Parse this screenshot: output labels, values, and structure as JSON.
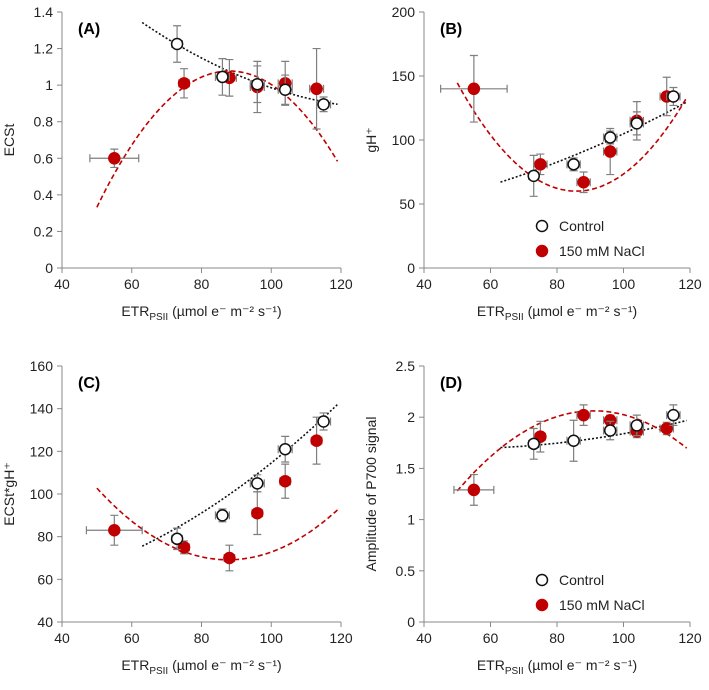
{
  "colors": {
    "control": "#111111",
    "nacl": "#c00000",
    "nacl_fill": "#c00000",
    "control_fill": "#ffffff",
    "error_bar": "#7f7f7f",
    "axis": "#888888",
    "text": "#222222"
  },
  "chart_data": [
    {
      "type": "scatter",
      "panel_label": "(A)",
      "xlabel": {
        "main": "ETR",
        "sub": "PSII",
        "units": " (µmol e⁻ m⁻² s⁻¹)"
      },
      "ylabel": "ECSt",
      "xlim": [
        40,
        120
      ],
      "xticks": [
        "40",
        "60",
        "80",
        "100",
        "120"
      ],
      "ylim": [
        0,
        1.4
      ],
      "yticks": [
        "0",
        "0.2",
        "0.4",
        "0.6",
        "0.8",
        "1",
        "1.2",
        "1.4"
      ],
      "legend": null,
      "series": [
        {
          "name": "Control",
          "marker": "open-circle",
          "points": [
            {
              "x": 73,
              "y": 1.225,
              "xerr": 1.5,
              "yerr": 0.1
            },
            {
              "x": 86,
              "y": 1.045,
              "xerr": 2,
              "yerr": 0.1
            },
            {
              "x": 96,
              "y": 1.005,
              "xerr": 2,
              "yerr": 0.1
            },
            {
              "x": 104,
              "y": 0.975,
              "xerr": 2,
              "yerr": 0.08
            },
            {
              "x": 115,
              "y": 0.895,
              "xerr": 2,
              "yerr": 0.04
            }
          ],
          "fit": {
            "style": "dotted",
            "coef": [
              2.5025,
              -0.02394,
              8.77e-05
            ],
            "range": [
              63,
              119
            ]
          }
        },
        {
          "name": "150 mM NaCl",
          "marker": "filled-circle",
          "points": [
            {
              "x": 55,
              "y": 0.6,
              "xerr": 7,
              "yerr": 0.05
            },
            {
              "x": 75,
              "y": 1.01,
              "xerr": 1.5,
              "yerr": 0.08
            },
            {
              "x": 88,
              "y": 1.04,
              "xerr": 2,
              "yerr": 0.1
            },
            {
              "x": 96,
              "y": 0.99,
              "xerr": 2,
              "yerr": 0.14
            },
            {
              "x": 104,
              "y": 1.01,
              "xerr": 2,
              "yerr": 0.12
            },
            {
              "x": 113,
              "y": 0.98,
              "xerr": 2,
              "yerr": 0.22
            }
          ],
          "fit": {
            "style": "dashed",
            "coef": [
              -2.9127,
              0.090636,
              -0.00051475
            ],
            "range": [
              50,
              119
            ]
          }
        }
      ]
    },
    {
      "type": "scatter",
      "panel_label": "(B)",
      "xlabel": {
        "main": "ETR",
        "sub": "PSII",
        "units": " (µmol e⁻ m⁻² s⁻¹)"
      },
      "ylabel": "gH⁺",
      "xlim": [
        40,
        120
      ],
      "xticks": [
        "40",
        "60",
        "80",
        "100",
        "120"
      ],
      "ylim": [
        0,
        200
      ],
      "yticks": [
        "0",
        "50",
        "100",
        "150",
        "200"
      ],
      "legend": {
        "position": "bottom-right",
        "entries": [
          "Control",
          "150 mM NaCl"
        ]
      },
      "series": [
        {
          "name": "Control",
          "marker": "open-circle",
          "points": [
            {
              "x": 73,
              "y": 72,
              "xerr": 1.5,
              "yerr": 16
            },
            {
              "x": 85,
              "y": 81,
              "xerr": 2,
              "yerr": 5
            },
            {
              "x": 96,
              "y": 102,
              "xerr": 2,
              "yerr": 5
            },
            {
              "x": 104,
              "y": 113,
              "xerr": 2,
              "yerr": 9
            },
            {
              "x": 115,
              "y": 134,
              "xerr": 2,
              "yerr": 7
            }
          ],
          "fit": {
            "style": "dotted",
            "coef": [
              34.9,
              0.1898,
              0.005096
            ],
            "range": [
              63,
              119
            ]
          }
        },
        {
          "name": "150 mM NaCl",
          "marker": "filled-circle",
          "points": [
            {
              "x": 55,
              "y": 140,
              "xerr": 10,
              "yerr": 26
            },
            {
              "x": 75,
              "y": 81,
              "xerr": 2,
              "yerr": 8
            },
            {
              "x": 88,
              "y": 67,
              "xerr": 2,
              "yerr": 8
            },
            {
              "x": 96,
              "y": 91,
              "xerr": 2,
              "yerr": 18
            },
            {
              "x": 104,
              "y": 115,
              "xerr": 2,
              "yerr": 15
            },
            {
              "x": 113,
              "y": 134,
              "xerr": 2,
              "yerr": 15
            }
          ],
          "fit": {
            "style": "dashed",
            "coef": [
              546.16,
              -11.3345,
              0.06607
            ],
            "range": [
              50,
              119
            ]
          }
        }
      ]
    },
    {
      "type": "scatter",
      "panel_label": "(C)",
      "xlabel": {
        "main": "ETR",
        "sub": "PSII",
        "units": " (µmol e⁻ m⁻² s⁻¹)"
      },
      "ylabel": "ECSt*gH⁺",
      "xlim": [
        40,
        120
      ],
      "xticks": [
        "40",
        "60",
        "80",
        "100",
        "120"
      ],
      "ylim": [
        40,
        160
      ],
      "yticks": [
        "40",
        "60",
        "80",
        "100",
        "120",
        "140",
        "160"
      ],
      "legend": null,
      "series": [
        {
          "name": "Control",
          "marker": "open-circle",
          "points": [
            {
              "x": 73,
              "y": 79,
              "xerr": 1.5,
              "yerr": 5
            },
            {
              "x": 86,
              "y": 90,
              "xerr": 2,
              "yerr": 3
            },
            {
              "x": 96,
              "y": 105,
              "xerr": 2,
              "yerr": 4
            },
            {
              "x": 104,
              "y": 121,
              "xerr": 2,
              "yerr": 6
            },
            {
              "x": 115,
              "y": 134,
              "xerr": 2,
              "yerr": 4
            }
          ],
          "fit": {
            "style": "dotted",
            "coef": [
              53.07,
              -0.082,
              0.006968
            ],
            "range": [
              63,
              119
            ]
          }
        },
        {
          "name": "150 mM NaCl",
          "marker": "filled-circle",
          "points": [
            {
              "x": 55,
              "y": 83,
              "xerr": 8,
              "yerr": 7
            },
            {
              "x": 75,
              "y": 75,
              "xerr": 1.5,
              "yerr": 3
            },
            {
              "x": 88,
              "y": 70,
              "xerr": 1.5,
              "yerr": 6
            },
            {
              "x": 96,
              "y": 91,
              "xerr": 1.5,
              "yerr": 10
            },
            {
              "x": 104,
              "y": 106,
              "xerr": 1.5,
              "yerr": 8
            },
            {
              "x": 113,
              "y": 125,
              "xerr": 1.5,
              "yerr": 11
            }
          ],
          "fit": {
            "style": "dashed",
            "coef": [
              251.46,
              -4.1616,
              0.02375
            ],
            "range": [
              50,
              119
            ]
          }
        }
      ]
    },
    {
      "type": "scatter",
      "panel_label": "(D)",
      "xlabel": {
        "main": "ETR",
        "sub": "PSII",
        "units": " (µmol e⁻ m⁻² s⁻¹)"
      },
      "ylabel": "Amplitude of P700 signal",
      "xlim": [
        40,
        120
      ],
      "xticks": [
        "40",
        "60",
        "80",
        "100",
        "120"
      ],
      "ylim": [
        0,
        2.5
      ],
      "yticks": [
        "0",
        "0.5",
        "1",
        "1.5",
        "2",
        "2.5"
      ],
      "legend": {
        "position": "bottom-right",
        "entries": [
          "Control",
          "150 mM NaCl"
        ]
      },
      "series": [
        {
          "name": "Control",
          "marker": "open-circle",
          "points": [
            {
              "x": 73,
              "y": 1.74,
              "xerr": 1.5,
              "yerr": 0.15
            },
            {
              "x": 85,
              "y": 1.77,
              "xerr": 2,
              "yerr": 0.2
            },
            {
              "x": 96,
              "y": 1.87,
              "xerr": 2,
              "yerr": 0.09
            },
            {
              "x": 104,
              "y": 1.92,
              "xerr": 2,
              "yerr": 0.1
            },
            {
              "x": 115,
              "y": 2.02,
              "xerr": 2,
              "yerr": 0.1
            }
          ],
          "fit": {
            "style": "dotted",
            "coef": [
              1.8235,
              -0.005418,
              5.57e-05
            ],
            "range": [
              63,
              119
            ]
          }
        },
        {
          "name": "150 mM NaCl",
          "marker": "filled-circle",
          "points": [
            {
              "x": 55,
              "y": 1.29,
              "xerr": 6,
              "yerr": 0.15
            },
            {
              "x": 75,
              "y": 1.81,
              "xerr": 1.5,
              "yerr": 0.15
            },
            {
              "x": 88,
              "y": 2.02,
              "xerr": 2,
              "yerr": 0.1
            },
            {
              "x": 96,
              "y": 1.97,
              "xerr": 2,
              "yerr": 0.05
            },
            {
              "x": 104,
              "y": 1.86,
              "xerr": 2,
              "yerr": 0.06
            },
            {
              "x": 113,
              "y": 1.89,
              "xerr": 2,
              "yerr": 0.06
            }
          ],
          "fit": {
            "style": "dashed",
            "coef": [
              -1.7905,
              0.08465,
              -0.000465
            ],
            "range": [
              50,
              119
            ]
          }
        }
      ]
    }
  ]
}
